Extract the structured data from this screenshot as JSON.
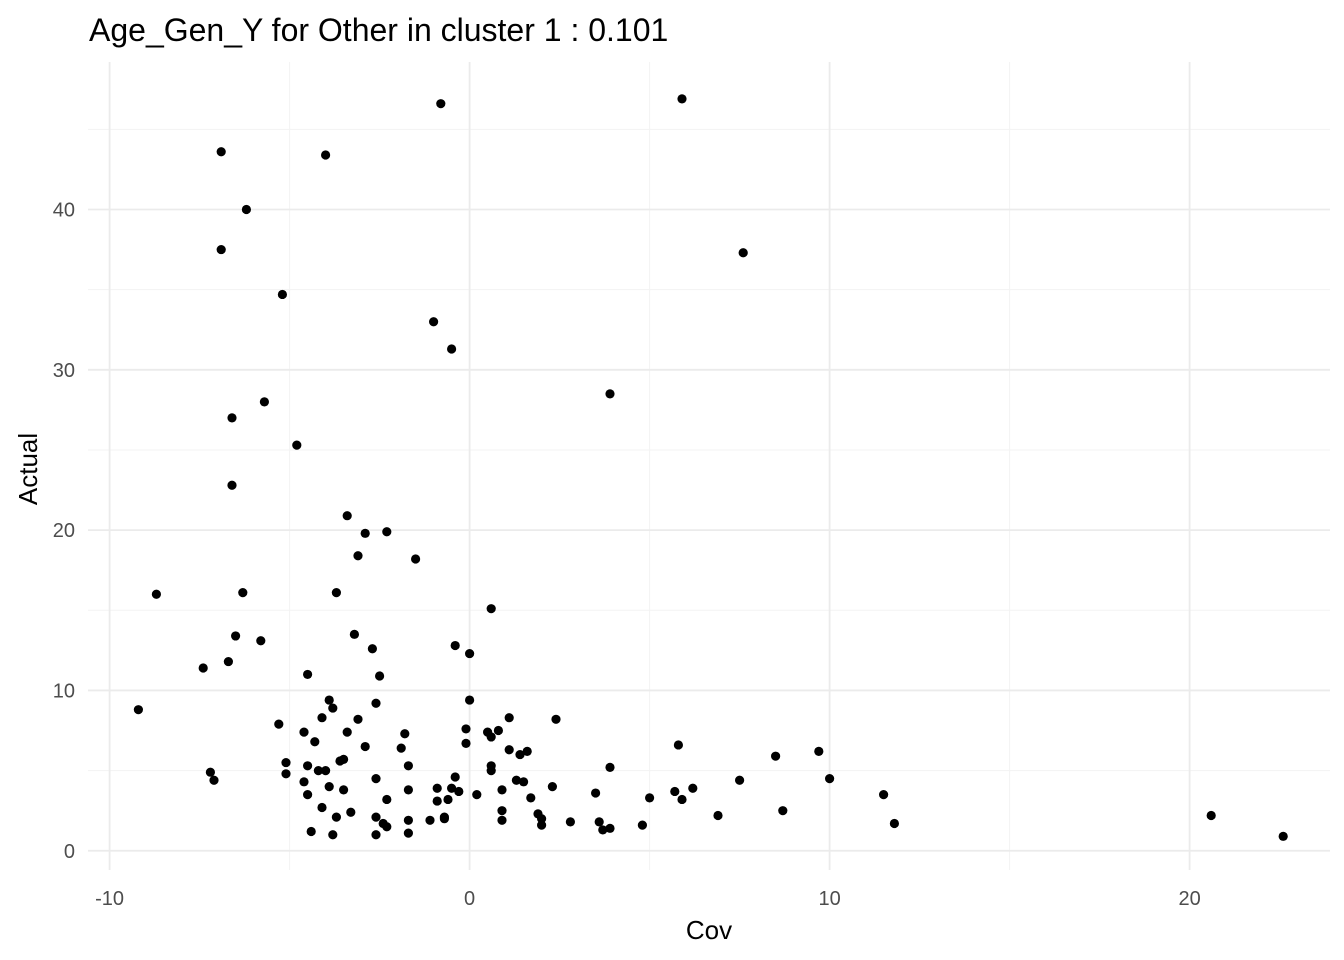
{
  "chart_data": {
    "type": "scatter",
    "title": "Age_Gen_Y for Other in cluster 1 : 0.101",
    "xlabel": "Cov",
    "ylabel": "Actual",
    "xlim": [
      -10.6,
      23.9
    ],
    "ylim": [
      -1.2,
      49.2
    ],
    "x_ticks": [
      -10,
      0,
      10,
      20
    ],
    "y_ticks": [
      0,
      10,
      20,
      30,
      40
    ],
    "x_tick_labels": [
      "-10",
      "0",
      "10",
      "20"
    ],
    "y_tick_labels": [
      "0",
      "10",
      "20",
      "30",
      "40"
    ],
    "grid": true,
    "points": [
      [
        -0.8,
        46.6
      ],
      [
        5.9,
        46.9
      ],
      [
        -6.9,
        43.6
      ],
      [
        -4.0,
        43.4
      ],
      [
        -6.2,
        40.0
      ],
      [
        -6.9,
        37.5
      ],
      [
        7.6,
        37.3
      ],
      [
        -5.2,
        34.7
      ],
      [
        -1.0,
        33.0
      ],
      [
        -0.5,
        31.3
      ],
      [
        3.9,
        28.5
      ],
      [
        -5.7,
        28.0
      ],
      [
        -6.6,
        27.0
      ],
      [
        -4.8,
        25.3
      ],
      [
        -6.6,
        22.8
      ],
      [
        -3.4,
        20.9
      ],
      [
        -2.9,
        19.8
      ],
      [
        -2.3,
        19.9
      ],
      [
        -3.1,
        18.4
      ],
      [
        -1.5,
        18.2
      ],
      [
        -8.7,
        16.0
      ],
      [
        -6.3,
        16.1
      ],
      [
        -3.7,
        16.1
      ],
      [
        0.6,
        15.1
      ],
      [
        -6.5,
        13.4
      ],
      [
        -5.8,
        13.1
      ],
      [
        -3.2,
        13.5
      ],
      [
        -0.4,
        12.8
      ],
      [
        0.0,
        12.3
      ],
      [
        -2.7,
        12.6
      ],
      [
        -7.4,
        11.4
      ],
      [
        -6.7,
        11.8
      ],
      [
        -4.5,
        11.0
      ],
      [
        -2.5,
        10.9
      ],
      [
        -9.2,
        8.8
      ],
      [
        -3.9,
        9.4
      ],
      [
        -3.8,
        8.9
      ],
      [
        -4.1,
        8.3
      ],
      [
        -3.1,
        8.2
      ],
      [
        0.0,
        9.4
      ],
      [
        -5.3,
        7.9
      ],
      [
        -4.6,
        7.4
      ],
      [
        -3.4,
        7.4
      ],
      [
        -2.6,
        9.2
      ],
      [
        -1.8,
        7.3
      ],
      [
        -0.1,
        7.6
      ],
      [
        0.5,
        7.4
      ],
      [
        0.6,
        7.1
      ],
      [
        0.8,
        7.5
      ],
      [
        1.1,
        8.3
      ],
      [
        2.4,
        8.2
      ],
      [
        -4.3,
        6.8
      ],
      [
        -2.9,
        6.5
      ],
      [
        -1.9,
        6.4
      ],
      [
        -0.1,
        6.7
      ],
      [
        1.1,
        6.3
      ],
      [
        1.4,
        6.0
      ],
      [
        1.6,
        6.2
      ],
      [
        5.8,
        6.6
      ],
      [
        8.5,
        5.9
      ],
      [
        9.7,
        6.2
      ],
      [
        -7.2,
        4.9
      ],
      [
        -7.1,
        4.4
      ],
      [
        -5.1,
        5.5
      ],
      [
        -5.1,
        4.8
      ],
      [
        -4.5,
        5.3
      ],
      [
        -4.2,
        5.0
      ],
      [
        -4.0,
        5.0
      ],
      [
        -3.6,
        5.6
      ],
      [
        -3.5,
        5.7
      ],
      [
        -2.6,
        4.5
      ],
      [
        -1.7,
        5.3
      ],
      [
        0.6,
        5.3
      ],
      [
        0.6,
        5.0
      ],
      [
        3.9,
        5.2
      ],
      [
        -4.6,
        4.3
      ],
      [
        -0.4,
        4.6
      ],
      [
        1.3,
        4.4
      ],
      [
        1.5,
        4.3
      ],
      [
        7.5,
        4.4
      ],
      [
        10.0,
        4.5
      ],
      [
        -4.5,
        3.5
      ],
      [
        -3.9,
        4.0
      ],
      [
        -3.5,
        3.8
      ],
      [
        -1.7,
        3.8
      ],
      [
        -0.9,
        3.9
      ],
      [
        -0.5,
        3.9
      ],
      [
        -0.3,
        3.7
      ],
      [
        0.2,
        3.5
      ],
      [
        0.9,
        3.8
      ],
      [
        1.7,
        3.3
      ],
      [
        2.3,
        4.0
      ],
      [
        3.5,
        3.6
      ],
      [
        5.7,
        3.7
      ],
      [
        6.2,
        3.9
      ],
      [
        -4.1,
        2.7
      ],
      [
        -3.3,
        2.4
      ],
      [
        -2.3,
        3.2
      ],
      [
        -0.9,
        3.1
      ],
      [
        -0.6,
        3.2
      ],
      [
        0.9,
        2.5
      ],
      [
        1.9,
        2.3
      ],
      [
        5.0,
        3.3
      ],
      [
        5.9,
        3.2
      ],
      [
        8.7,
        2.5
      ],
      [
        11.5,
        3.5
      ],
      [
        -3.7,
        2.1
      ],
      [
        -2.6,
        2.1
      ],
      [
        -2.4,
        1.7
      ],
      [
        -2.3,
        1.5
      ],
      [
        -1.1,
        1.9
      ],
      [
        -0.7,
        2.0
      ],
      [
        -0.7,
        2.1
      ],
      [
        0.9,
        1.9
      ],
      [
        2.0,
        1.6
      ],
      [
        2.0,
        2.0
      ],
      [
        2.8,
        1.8
      ],
      [
        3.6,
        1.8
      ],
      [
        4.8,
        1.6
      ],
      [
        6.9,
        2.2
      ],
      [
        11.8,
        1.7
      ],
      [
        20.6,
        2.2
      ],
      [
        -4.4,
        1.2
      ],
      [
        -3.8,
        1.0
      ],
      [
        -2.6,
        1.0
      ],
      [
        -1.7,
        1.1
      ],
      [
        -1.7,
        1.9
      ],
      [
        3.7,
        1.3
      ],
      [
        3.9,
        1.4
      ],
      [
        22.6,
        0.9
      ]
    ]
  }
}
